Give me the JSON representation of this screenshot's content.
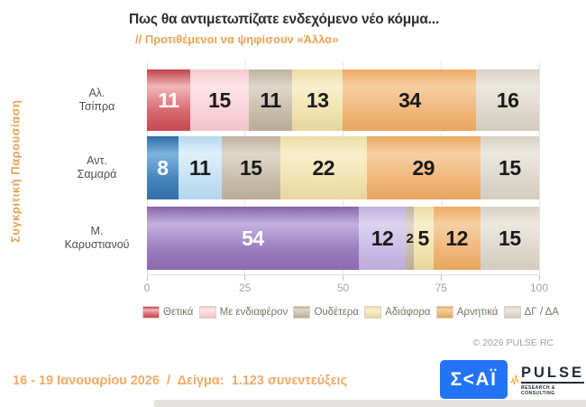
{
  "header": {
    "title": "Πως θα αντιμετωπίζατε ενδεχόμενο νέο κόμμα...",
    "subtitle": "// Προτιθέμενοι να ψηφίσουν «Άλλο»"
  },
  "side_label": "Συγκριτική Παρουσίαση",
  "watermark": {
    "name": "PULSE",
    "tagline": "RESEARCH & CONSULTING"
  },
  "copyright": "© 2026 PULSE RC",
  "footer": {
    "survey_info": "16 - 19 Ιανουαρίου 2026  /  Δείγμα:  1.123 συνεντεύξεις",
    "skai_logo_text": "Σ<ΑΪ",
    "pulse_logo_text": "PULSE",
    "pulse_logo_tagline": "RESEARCH & CONSULTING"
  },
  "brand_colors": {
    "accent_orange": "#e9a353",
    "skai_blue": "#2274f5",
    "pulse_dark": "#222d39",
    "pulse_orange": "#f6a01e"
  },
  "chart_data": {
    "type": "bar",
    "orientation": "horizontal",
    "stacked": true,
    "title": "Πως θα αντιμετωπίζατε ενδεχόμενο νέο κόμμα...",
    "subtitle": "// Προτιθέμενοι να ψηφίσουν «Άλλο»",
    "categories": [
      "Αλ. Τσίπρα",
      "Αντ. Σαμαρά",
      "Μ. Καρυστιανού"
    ],
    "series": [
      {
        "name": "Θετικά",
        "values": [
          11,
          8,
          54
        ]
      },
      {
        "name": "Με ενδιαφέρον",
        "values": [
          15,
          11,
          12
        ]
      },
      {
        "name": "Ουδέτερα",
        "values": [
          11,
          15,
          2
        ]
      },
      {
        "name": "Αδιάφορα",
        "values": [
          13,
          22,
          5
        ]
      },
      {
        "name": "Αρνητικά",
        "values": [
          34,
          29,
          12
        ]
      },
      {
        "name": "ΔΓ / ΔΑ",
        "values": [
          16,
          15,
          15
        ]
      }
    ],
    "xlim": [
      0,
      100
    ],
    "x_ticks": [
      "0",
      "25",
      "50",
      "75",
      "100"
    ],
    "grid": true,
    "legend_position": "bottom",
    "row_palettes": [
      [
        "red",
        "pink",
        "taupe",
        "yellow",
        "orange",
        "gray"
      ],
      [
        "blue",
        "lightblue",
        "taupe",
        "yellow",
        "orange",
        "gray"
      ],
      [
        "purple",
        "lightpurple",
        "taupe",
        "yellow",
        "orange",
        "gray"
      ]
    ],
    "legend_palette": [
      "red",
      "pink",
      "taupe",
      "yellow",
      "orange",
      "gray"
    ],
    "palette": {
      "red": {
        "top": "#c0434c",
        "light": "#f2b7ba",
        "mid": "#d96b72",
        "bottom": "#c64a52",
        "text": "#ffffff"
      },
      "pink": {
        "top": "#f6c9d1",
        "light": "#fde5e9",
        "mid": "#f9d2d9",
        "bottom": "#f4c3cc",
        "text": "#1a1a1a"
      },
      "blue": {
        "top": "#2e6da6",
        "light": "#7db3dd",
        "mid": "#4787bd",
        "bottom": "#336fa8",
        "text": "#ffffff"
      },
      "lightblue": {
        "top": "#b5d7ee",
        "light": "#def0fa",
        "mid": "#c6e2f4",
        "bottom": "#b2d4ec",
        "text": "#1a1a1a"
      },
      "purple": {
        "top": "#8766ab",
        "light": "#c3b1de",
        "mid": "#9c7ec1",
        "bottom": "#8b69ae",
        "text": "#ffffff"
      },
      "lightpurple": {
        "top": "#bfaede",
        "light": "#ded4f0",
        "mid": "#cabce6",
        "bottom": "#bcaadc",
        "text": "#1a1a1a"
      },
      "taupe": {
        "top": "#bfb2a0",
        "light": "#e0d8ca",
        "mid": "#cbbfad",
        "bottom": "#b9ab97",
        "text": "#1a1a1a"
      },
      "yellow": {
        "top": "#ecdca6",
        "light": "#f8efcd",
        "mid": "#f1e4b3",
        "bottom": "#e7d69d",
        "text": "#1a1a1a"
      },
      "orange": {
        "top": "#edaa64",
        "light": "#f6d0a2",
        "mid": "#f0b87d",
        "bottom": "#e9a55e",
        "text": "#1a1a1a"
      },
      "gray": {
        "top": "#d8d2c5",
        "light": "#ece8df",
        "mid": "#ded9cd",
        "bottom": "#d3ccbe",
        "text": "#1a1a1a"
      }
    }
  }
}
